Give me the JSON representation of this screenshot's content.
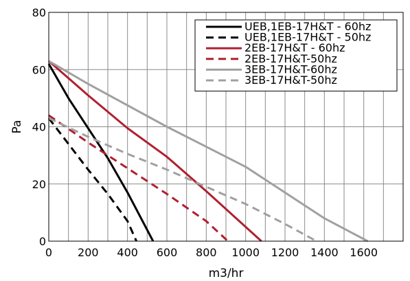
{
  "chart_data": {
    "type": "line",
    "title": "",
    "xlabel": "m3/hr",
    "ylabel": "Pa",
    "xlim": [
      0,
      1800
    ],
    "ylim": [
      0,
      80
    ],
    "xticks": [
      0,
      200,
      400,
      600,
      800,
      1000,
      1200,
      1400,
      1600
    ],
    "yticks": [
      0,
      20,
      40,
      60,
      80
    ],
    "x_grid_step": 100,
    "grid": true,
    "legend_position": "top-right",
    "series": [
      {
        "name": "UEB,1EB-17H&T - 60hz",
        "color": "#000000",
        "dash": "solid",
        "points": [
          [
            0,
            62
          ],
          [
            100,
            50
          ],
          [
            200,
            39.5
          ],
          [
            300,
            29
          ],
          [
            400,
            17
          ],
          [
            530,
            0
          ]
        ]
      },
      {
        "name": "UEB,1EB-17H&T - 50hz",
        "color": "#000000",
        "dash": "dashed",
        "points": [
          [
            0,
            43
          ],
          [
            100,
            34
          ],
          [
            200,
            25
          ],
          [
            300,
            16.5
          ],
          [
            400,
            7
          ],
          [
            445,
            0
          ]
        ]
      },
      {
        "name": "2EB-17H&T - 60hz",
        "color": "#b02030",
        "dash": "solid",
        "points": [
          [
            0,
            63
          ],
          [
            200,
            51
          ],
          [
            400,
            39.5
          ],
          [
            600,
            29.5
          ],
          [
            700,
            23.5
          ],
          [
            800,
            17.5
          ],
          [
            1080,
            0
          ]
        ]
      },
      {
        "name": "2EB-17H&T-50hz",
        "color": "#b02030",
        "dash": "dashed",
        "points": [
          [
            0,
            44
          ],
          [
            200,
            34.5
          ],
          [
            400,
            25.5
          ],
          [
            600,
            16.5
          ],
          [
            800,
            7
          ],
          [
            910,
            0
          ]
        ]
      },
      {
        "name": "3EB-17H&T-60hz",
        "color": "#a0a0a0",
        "dash": "solid",
        "points": [
          [
            0,
            63
          ],
          [
            200,
            55
          ],
          [
            400,
            47.5
          ],
          [
            600,
            40
          ],
          [
            800,
            33
          ],
          [
            1000,
            26
          ],
          [
            1200,
            17
          ],
          [
            1400,
            8
          ],
          [
            1620,
            0
          ]
        ]
      },
      {
        "name": "3EB-17H&T-50hz",
        "color": "#a0a0a0",
        "dash": "dashed",
        "points": [
          [
            0,
            43
          ],
          [
            200,
            36.5
          ],
          [
            400,
            30.5
          ],
          [
            600,
            25
          ],
          [
            800,
            19
          ],
          [
            1000,
            13
          ],
          [
            1200,
            6
          ],
          [
            1360,
            0
          ]
        ]
      }
    ]
  }
}
